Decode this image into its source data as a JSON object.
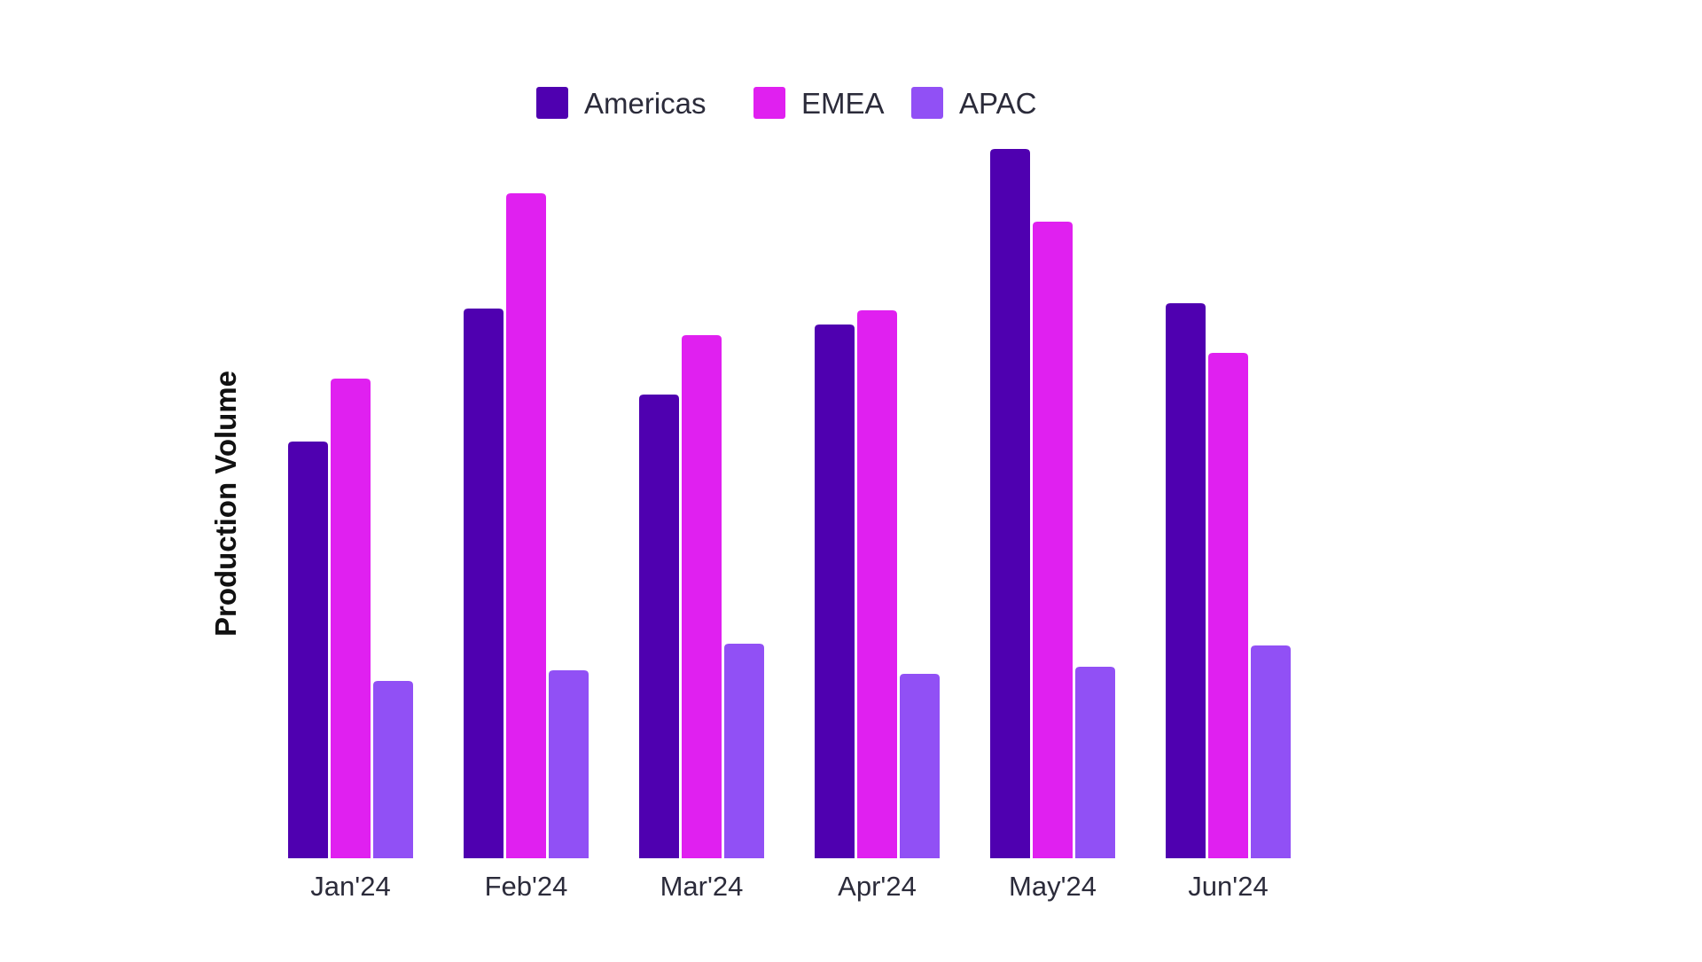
{
  "chart_data": {
    "type": "bar",
    "title": "",
    "xlabel": "",
    "ylabel": "Production Volume",
    "categories": [
      "Jan'24",
      "Feb'24",
      "Mar'24",
      "Apr'24",
      "May'24",
      "Jun'24"
    ],
    "series": [
      {
        "name": "Americas",
        "color": "#4f00b0",
        "values": [
          470,
          620,
          523,
          602,
          800,
          626
        ]
      },
      {
        "name": "EMEA",
        "color": "#e020f0",
        "values": [
          541,
          750,
          590,
          618,
          718,
          570
        ]
      },
      {
        "name": "APAC",
        "color": "#9150f5",
        "values": [
          200,
          212,
          242,
          208,
          216,
          240
        ]
      }
    ],
    "ylim": [
      0,
      800
    ],
    "grid": false,
    "y_ticks_visible": false,
    "legend": "top"
  }
}
